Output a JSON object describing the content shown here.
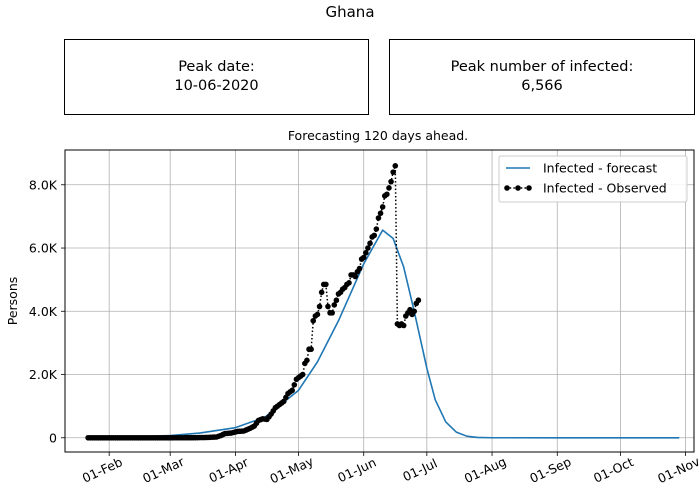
{
  "figure": {
    "title": "Ghana"
  },
  "peak_date": {
    "label": "Peak date:",
    "value": "10-06-2020"
  },
  "peak_number": {
    "label": "Peak number of infected:",
    "value": "6,566"
  },
  "chart_data": {
    "type": "line",
    "title": "Forecasting 120 days ahead.",
    "xlabel": "",
    "ylabel": "Persons",
    "x_axis": "date",
    "xlim": [
      "2020-01-11",
      "2020-11-05"
    ],
    "ylim": [
      -450,
      9100
    ],
    "xtick_labels": [
      "01-Feb",
      "01-Mar",
      "01-Apr",
      "01-May",
      "01-Jun",
      "01-Jul",
      "01-Aug",
      "01-Sep",
      "01-Oct",
      "01-Nov"
    ],
    "xtick_dates": [
      "2020-02-01",
      "2020-03-01",
      "2020-04-01",
      "2020-05-01",
      "2020-06-01",
      "2020-07-01",
      "2020-08-01",
      "2020-09-01",
      "2020-10-01",
      "2020-11-01"
    ],
    "ytick_values": [
      0,
      2000,
      4000,
      6000,
      8000
    ],
    "ytick_labels": [
      "0",
      "2.0K",
      "4.0K",
      "6.0K",
      "8.0K"
    ],
    "grid": true,
    "legend_position": "top-right",
    "colors": {
      "forecast": "#1f77b4",
      "observed": "#000000"
    },
    "series": [
      {
        "name": "Infected - forecast",
        "style": "solid line",
        "points": [
          [
            "2020-01-22",
            2
          ],
          [
            "2020-02-01",
            15
          ],
          [
            "2020-02-15",
            35
          ],
          [
            "2020-03-01",
            70
          ],
          [
            "2020-03-15",
            150
          ],
          [
            "2020-04-01",
            320
          ],
          [
            "2020-04-15",
            650
          ],
          [
            "2020-05-01",
            1500
          ],
          [
            "2020-05-10",
            2400
          ],
          [
            "2020-05-20",
            3700
          ],
          [
            "2020-06-01",
            5500
          ],
          [
            "2020-06-10",
            6566
          ],
          [
            "2020-06-15",
            6300
          ],
          [
            "2020-06-20",
            5400
          ],
          [
            "2020-06-25",
            4000
          ],
          [
            "2020-07-01",
            2200
          ],
          [
            "2020-07-05",
            1200
          ],
          [
            "2020-07-10",
            500
          ],
          [
            "2020-07-15",
            180
          ],
          [
            "2020-07-20",
            50
          ],
          [
            "2020-07-25",
            10
          ],
          [
            "2020-08-01",
            1
          ],
          [
            "2020-09-01",
            0
          ],
          [
            "2020-10-01",
            0
          ],
          [
            "2020-10-29",
            0
          ]
        ]
      },
      {
        "name": "Infected - Observed",
        "style": "dotted line with markers",
        "points": [
          [
            "2020-01-22",
            0
          ],
          [
            "2020-02-01",
            0
          ],
          [
            "2020-02-15",
            0
          ],
          [
            "2020-03-01",
            0
          ],
          [
            "2020-03-13",
            2
          ],
          [
            "2020-03-15",
            6
          ],
          [
            "2020-03-17",
            7
          ],
          [
            "2020-03-19",
            11
          ],
          [
            "2020-03-21",
            19
          ],
          [
            "2020-03-23",
            24
          ],
          [
            "2020-03-25",
            68
          ],
          [
            "2020-03-27",
            132
          ],
          [
            "2020-03-30",
            150
          ],
          [
            "2020-04-02",
            200
          ],
          [
            "2020-04-05",
            214
          ],
          [
            "2020-04-08",
            300
          ],
          [
            "2020-04-10",
            370
          ],
          [
            "2020-04-12",
            550
          ],
          [
            "2020-04-14",
            600
          ],
          [
            "2020-04-16",
            580
          ],
          [
            "2020-04-18",
            750
          ],
          [
            "2020-04-20",
            950
          ],
          [
            "2020-04-22",
            1050
          ],
          [
            "2020-04-24",
            1150
          ],
          [
            "2020-04-26",
            1400
          ],
          [
            "2020-04-28",
            1500
          ],
          [
            "2020-04-30",
            1850
          ],
          [
            "2020-05-01",
            1900
          ],
          [
            "2020-05-02",
            1950
          ],
          [
            "2020-05-03",
            2000
          ],
          [
            "2020-05-04",
            2350
          ],
          [
            "2020-05-05",
            2450
          ],
          [
            "2020-05-06",
            2800
          ],
          [
            "2020-05-07",
            2800
          ],
          [
            "2020-05-08",
            3700
          ],
          [
            "2020-05-09",
            3850
          ],
          [
            "2020-05-10",
            3900
          ],
          [
            "2020-05-11",
            4150
          ],
          [
            "2020-05-12",
            4600
          ],
          [
            "2020-05-13",
            4850
          ],
          [
            "2020-05-14",
            4850
          ],
          [
            "2020-05-15",
            4150
          ],
          [
            "2020-05-16",
            3950
          ],
          [
            "2020-05-17",
            3950
          ],
          [
            "2020-05-18",
            4200
          ],
          [
            "2020-05-19",
            4350
          ],
          [
            "2020-05-20",
            4550
          ],
          [
            "2020-05-21",
            4600
          ],
          [
            "2020-05-22",
            4700
          ],
          [
            "2020-05-23",
            4750
          ],
          [
            "2020-05-24",
            4850
          ],
          [
            "2020-05-25",
            4900
          ],
          [
            "2020-05-26",
            5150
          ],
          [
            "2020-05-27",
            5150
          ],
          [
            "2020-05-28",
            5100
          ],
          [
            "2020-05-29",
            5250
          ],
          [
            "2020-05-30",
            5350
          ],
          [
            "2020-05-31",
            5650
          ],
          [
            "2020-06-01",
            5700
          ],
          [
            "2020-06-02",
            5850
          ],
          [
            "2020-06-03",
            6000
          ],
          [
            "2020-06-04",
            6150
          ],
          [
            "2020-06-05",
            6350
          ],
          [
            "2020-06-06",
            6400
          ],
          [
            "2020-06-07",
            6600
          ],
          [
            "2020-06-08",
            6950
          ],
          [
            "2020-06-09",
            7100
          ],
          [
            "2020-06-10",
            7300
          ],
          [
            "2020-06-11",
            7650
          ],
          [
            "2020-06-12",
            7700
          ],
          [
            "2020-06-13",
            7900
          ],
          [
            "2020-06-14",
            8100
          ],
          [
            "2020-06-15",
            8400
          ],
          [
            "2020-06-16",
            8600
          ],
          [
            "2020-06-17",
            3600
          ],
          [
            "2020-06-18",
            3550
          ],
          [
            "2020-06-19",
            3600
          ],
          [
            "2020-06-20",
            3550
          ],
          [
            "2020-06-21",
            3850
          ],
          [
            "2020-06-22",
            3950
          ],
          [
            "2020-06-23",
            4050
          ],
          [
            "2020-06-24",
            3900
          ],
          [
            "2020-06-25",
            4000
          ],
          [
            "2020-06-26",
            4250
          ],
          [
            "2020-06-27",
            4350
          ]
        ]
      }
    ]
  }
}
